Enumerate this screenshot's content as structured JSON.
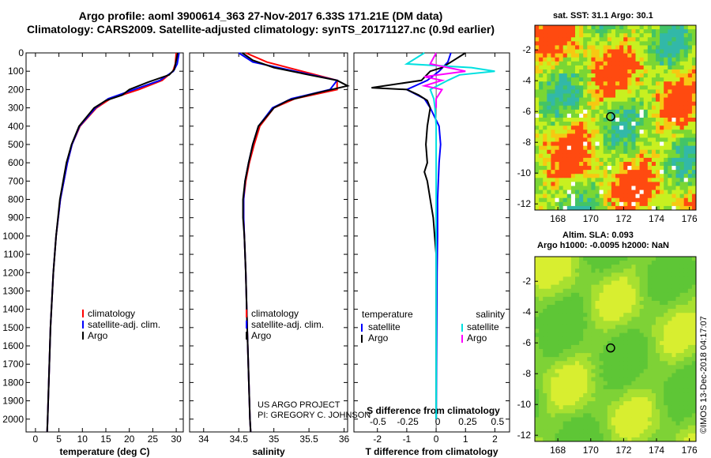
{
  "header": {
    "title_line1": "Argo profile: aoml 3900614_363 27-Nov-2017 6.33S 171.21E (DM data)",
    "title_line2": "Climatology: CARS2009. Satellite-adjusted climatology: synTS_20171127.nc (0.9d earlier)"
  },
  "colors": {
    "climatology": "#ff0000",
    "satellite": "#0000ff",
    "argo": "#000000",
    "salinity_satellite": "#00e0e0",
    "salinity_argo": "#ff00ff"
  },
  "chart_data": [
    {
      "type": "line",
      "xlabel": "temperature (deg C)",
      "ylabel": "",
      "xlim": [
        -2,
        31.5
      ],
      "ylim": [
        2070,
        0
      ],
      "x_ticks": [
        "0",
        "5",
        "10",
        "15",
        "20",
        "25",
        "30"
      ],
      "y_ticks": [
        "0",
        "100",
        "200",
        "300",
        "400",
        "500",
        "600",
        "700",
        "800",
        "900",
        "1000",
        "1100",
        "1200",
        "1300",
        "1400",
        "1500",
        "1600",
        "1700",
        "1800",
        "1900",
        "2000"
      ],
      "legend": [
        "climatology",
        "satellite-adj. clim.",
        "Argo"
      ],
      "series": [
        {
          "name": "climatology",
          "depth": [
            0,
            60,
            100,
            150,
            200,
            250,
            300,
            400,
            500,
            600,
            800,
            1000,
            1200,
            1500,
            2000,
            2070
          ],
          "values": [
            30.0,
            29.8,
            29.3,
            27.0,
            22.0,
            16.0,
            13.0,
            9.5,
            7.8,
            6.8,
            5.3,
            4.4,
            3.8,
            3.2,
            2.6,
            2.5
          ]
        },
        {
          "name": "satellite-adj. clim.",
          "depth": [
            0,
            60,
            100,
            150,
            200,
            250,
            300,
            400,
            500,
            600,
            800,
            1000,
            1200,
            1500,
            2000,
            2070
          ],
          "values": [
            30.6,
            30.2,
            29.4,
            26.5,
            21.0,
            15.5,
            12.8,
            9.4,
            7.8,
            6.8,
            5.3,
            4.4,
            3.8,
            3.2,
            2.6,
            2.5
          ]
        },
        {
          "name": "Argo",
          "depth": [
            0,
            40,
            90,
            120,
            160,
            200,
            230,
            260,
            300,
            400,
            500,
            600,
            800,
            1000,
            1200,
            1500,
            2000,
            2070
          ],
          "values": [
            30.3,
            30.0,
            29.6,
            28.5,
            24.0,
            20.0,
            18.5,
            15.0,
            12.5,
            9.3,
            7.7,
            6.6,
            5.2,
            4.4,
            3.8,
            3.2,
            2.6,
            2.5
          ]
        }
      ]
    },
    {
      "type": "line",
      "xlabel": "salinity",
      "ylabel": "",
      "xlim": [
        33.8,
        36.05
      ],
      "ylim": [
        2070,
        0
      ],
      "x_ticks": [
        "34",
        "34.5",
        "35",
        "35.5",
        "36"
      ],
      "legend": [
        "climatology",
        "satellite-adj. clim.",
        "Argo"
      ],
      "series": [
        {
          "name": "climatology",
          "depth": [
            0,
            50,
            100,
            150,
            200,
            250,
            300,
            400,
            500,
            600,
            700,
            800,
            900,
            1000,
            1200,
            1500,
            2000,
            2070
          ],
          "values": [
            34.6,
            34.9,
            35.4,
            35.9,
            35.9,
            35.3,
            35.0,
            34.8,
            34.72,
            34.65,
            34.6,
            34.57,
            34.57,
            34.58,
            34.6,
            34.62,
            34.66,
            34.67
          ]
        },
        {
          "name": "satellite-adj. clim.",
          "depth": [
            0,
            50,
            100,
            150,
            200,
            250,
            300,
            400,
            500,
            600,
            700,
            800,
            900,
            1000,
            1200,
            1500,
            2000,
            2070
          ],
          "values": [
            34.5,
            34.7,
            35.3,
            35.9,
            35.8,
            35.25,
            34.98,
            34.78,
            34.7,
            34.64,
            34.59,
            34.57,
            34.57,
            34.58,
            34.6,
            34.62,
            34.66,
            34.67
          ]
        },
        {
          "name": "Argo",
          "depth": [
            0,
            40,
            80,
            120,
            150,
            180,
            220,
            260,
            300,
            400,
            500,
            600,
            700,
            800,
            900,
            1000,
            1200,
            1500,
            2000,
            2070
          ],
          "values": [
            34.55,
            34.7,
            35.0,
            35.5,
            35.9,
            36.05,
            35.6,
            35.2,
            35.0,
            34.78,
            34.7,
            34.64,
            34.59,
            34.56,
            34.56,
            34.58,
            34.6,
            34.62,
            34.66,
            34.67
          ]
        }
      ]
    },
    {
      "type": "line",
      "title": "",
      "xlabel": "T difference from climatology",
      "top_xlabel": "S difference from climatology",
      "xlim": [
        -2.8,
        2.5
      ],
      "ylim": [
        2070,
        0
      ],
      "x_ticks": [
        "-2",
        "-1",
        "0",
        "1",
        "2"
      ],
      "top_x_ticks": [
        "-0.5",
        "-0.25",
        "0",
        "0.25",
        "0.5"
      ],
      "legend_left_title": "temperature",
      "legend_right_title": "salinity",
      "legend_left": [
        "satellite",
        "Argo"
      ],
      "legend_right": [
        "satellite",
        "Argo"
      ],
      "series": [
        {
          "name": "temperature satellite",
          "depth": [
            0,
            50,
            100,
            150,
            200,
            250,
            300,
            400,
            500,
            600,
            800,
            1000,
            1200,
            1500,
            2000
          ],
          "values": [
            0.5,
            0.4,
            0.1,
            -0.3,
            -1.0,
            -0.4,
            -0.2,
            0.1,
            0.15,
            0.1,
            0.05,
            0.05,
            0.03,
            0.02,
            0.0
          ]
        },
        {
          "name": "temperature Argo",
          "depth": [
            0,
            40,
            80,
            100,
            150,
            190,
            200,
            230,
            260,
            300,
            400,
            500,
            600,
            650,
            700,
            800,
            900,
            1000,
            1100,
            1200,
            1500,
            2000
          ],
          "values": [
            1.0,
            0.6,
            0.2,
            -0.2,
            -0.5,
            -2.2,
            -1.0,
            -0.6,
            -0.3,
            -0.2,
            -0.3,
            -0.35,
            -0.3,
            -0.4,
            -0.3,
            -0.2,
            -0.1,
            -0.05,
            0.0,
            0.0,
            0.0,
            0.0
          ]
        },
        {
          "name": "salinity satellite",
          "depth": [
            0,
            60,
            80,
            100,
            120,
            150,
            200,
            250,
            300,
            400,
            500,
            600,
            800,
            1000,
            1200,
            1500,
            2000
          ],
          "values": [
            -0.1,
            -0.25,
            0.3,
            0.5,
            0.2,
            0.1,
            -0.05,
            -0.02,
            -0.01,
            0.0,
            0.0,
            0.0,
            0.0,
            0.0,
            0.0,
            0.0,
            0.0
          ]
        },
        {
          "name": "salinity Argo",
          "depth": [
            0,
            60,
            100,
            130,
            150,
            180,
            200,
            250,
            300
          ],
          "values": [
            0.0,
            -0.05,
            0.25,
            -0.1,
            0.05,
            -0.1,
            0.05,
            0.0,
            0.0
          ]
        }
      ]
    }
  ],
  "credits": {
    "project": "US ARGO PROJECT",
    "pi": "PI: GREGORY C. JOHNSON",
    "imos": "©IMOS 13-Dec-2018 04:17:07"
  },
  "maps": {
    "sst": {
      "title": "sat. SST: 31.1 Argo: 30.1",
      "x_ticks": [
        "168",
        "170",
        "172",
        "174",
        "176"
      ],
      "y_ticks": [
        "-2",
        "-4",
        "-6",
        "-8",
        "-10",
        "-12"
      ],
      "marker": {
        "lon": 171.21,
        "lat": -6.33
      }
    },
    "sla": {
      "title_line1": "Altim. SLA: 0.093",
      "title_line2": "Argo h1000: -0.0095 h2000: NaN",
      "x_ticks": [
        "168",
        "170",
        "172",
        "174",
        "176"
      ],
      "y_ticks": [
        "-2",
        "-4",
        "-6",
        "-8",
        "-10",
        "-12"
      ],
      "marker": {
        "lon": 171.21,
        "lat": -6.33
      }
    }
  }
}
